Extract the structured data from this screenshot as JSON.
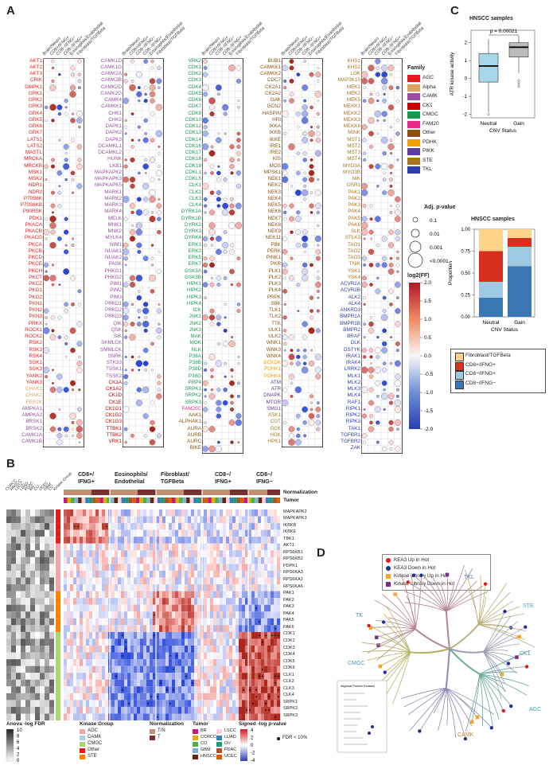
{
  "panels": {
    "a": "A",
    "b": "B",
    "c": "C",
    "d": "D"
  },
  "panelA": {
    "col_headers": [
      "Brain/Neuro",
      "CD8+/IFNG+",
      "CD8−/IFNG−",
      "CD8−/IFNG+",
      "Eosinophils/Endothelial",
      "Fibroblast/TGFBeta"
    ],
    "genes_col1": [
      "AKT1",
      "AKT2",
      "AKT3",
      "CRIK",
      "DMPK1",
      "GRK1",
      "GRK2",
      "GRK3",
      "GRK4",
      "GRK5",
      "GRK6",
      "GRK7",
      "LATS1",
      "LATS2",
      "MASTL",
      "MRCKA",
      "MRCKB",
      "MSK1",
      "MSK2",
      "NDR1",
      "NDR2",
      "P70S6K",
      "P70S6KB",
      "P90RSK",
      "PDK1",
      "PKACA",
      "PKACB",
      "PKACG",
      "PKCA",
      "PKCB",
      "PKCD",
      "PKCE",
      "PKCH",
      "PKCT",
      "PKCZ",
      "PKG1",
      "PKG2",
      "PKN1",
      "PKN2",
      "PKN3",
      "PRKX",
      "ROCK1",
      "ROCK2",
      "RSK2",
      "RSK3",
      "RSK4",
      "SGK1",
      "SGK3",
      "YANK2",
      "YANK3",
      "CHAK1",
      "CHAK2",
      "FER2K",
      "AMPKA1",
      "AMPKA2",
      "BRSK1",
      "BRSK2",
      "CAMK1A",
      "CAMK1B"
    ],
    "genes_col2": [
      "CAMK1D",
      "CAMK1G",
      "CAMK2A",
      "CAMK2B",
      "CAMK2D",
      "CAMK2G",
      "CAMK4",
      "CAMKK1",
      "CHK1",
      "CHK2",
      "DAPK1",
      "DAPK2",
      "DAPK3",
      "DCAMKL1",
      "DCAMKL2",
      "HUNK",
      "LKB1",
      "MAPKAPK2",
      "MAPKAPK3",
      "MAPKAPK5",
      "MARK1",
      "MARK2",
      "MARK3",
      "MARK4",
      "MELK",
      "MNK1",
      "MNK2",
      "MYLK4",
      "NIM1",
      "NUAK1",
      "NUAK2",
      "PASK",
      "PHKG1",
      "PHKG2",
      "PIM1",
      "PIM2",
      "PIM3",
      "PRKD1",
      "PRKD2",
      "PRKD3",
      "QIK",
      "QSK",
      "SIK",
      "SKMLCK",
      "SMMLCK",
      "SNRK",
      "STK33",
      "TSSK1",
      "TSSK2",
      "CK1A",
      "CK1A2",
      "CK1D",
      "CK1E",
      "CK1G1",
      "CK1G2",
      "CK1G3",
      "TTBK1",
      "TTBK2",
      "VRK1"
    ],
    "genes_col3": [
      "VRK2",
      "CDK1",
      "CDK2",
      "CDK3",
      "CDK4",
      "CDK5",
      "CDK6",
      "CDK7",
      "CDK9",
      "CDK10",
      "CDK12",
      "CDK13",
      "CDK14",
      "CDK16",
      "CDK17",
      "CDK18",
      "CDK19",
      "CDKL1",
      "CDKL5",
      "CLK1",
      "CLK2",
      "CLK3",
      "CLK4",
      "DYRK1A",
      "DYRK1B",
      "DYRK2",
      "DYRK3",
      "DYRK4",
      "ERK1",
      "ERK2",
      "ERK5",
      "ERK7",
      "GSK3A",
      "GSK3B",
      "HIPK1",
      "HIPK2",
      "HIPK3",
      "HIPK4",
      "ICK",
      "JNK1",
      "JNK2",
      "JNK3",
      "MAK",
      "MOK",
      "NLK",
      "P38A",
      "P38B",
      "P38D",
      "P38G",
      "PRP4",
      "SRPK1",
      "SRPK2",
      "SRPK3",
      "FAM20C",
      "AAK1",
      "ALPHAK1",
      "AURA",
      "AURB",
      "AURC",
      "BIKE"
    ],
    "genes_col4": [
      "BUB1",
      "CAMKK1",
      "CAMKK2",
      "CDC7",
      "CK2A1",
      "CK2A2",
      "GAK",
      "GCN2",
      "HASPIN",
      "HRI",
      "IKKA",
      "IKKB",
      "IKKE",
      "IRE1",
      "IRE2",
      "KIS",
      "MOS",
      "MPSK1",
      "NEK1",
      "NEK2",
      "NEK3",
      "NEK4",
      "NEK5",
      "NEK6",
      "NEK7",
      "NEK8",
      "NEK9",
      "NEK11",
      "PBK",
      "PERK",
      "PINK1",
      "PKR",
      "PLK1",
      "PLK2",
      "PLK3",
      "PLK4",
      "PRPK",
      "SBK",
      "TLK1",
      "TLK2",
      "TTK",
      "ULK1",
      "ULK2",
      "WNK1",
      "WNK3",
      "WNK4",
      "BCKDK",
      "PDHK1",
      "PDHK4",
      "ATM",
      "ATR",
      "DNAPK",
      "MTOR",
      "SMG1",
      "ASK1",
      "COT",
      "GCK",
      "HGK",
      "HPK1"
    ],
    "genes_col5": [
      "KHS1",
      "KHS2",
      "LOK",
      "MAP3K15",
      "MEK1",
      "MEK2",
      "MEK5",
      "MEKK1",
      "MEKK2",
      "MEKK3",
      "MEKK6",
      "MINK",
      "MST1",
      "MST2",
      "MST3",
      "MST4",
      "MYO3A",
      "MYO3B",
      "NIK",
      "OSR1",
      "PAK1",
      "PAK2",
      "PAK3",
      "PAK4",
      "PAK5",
      "PAK6",
      "SLK",
      "STLK3",
      "TAO1",
      "TAO2",
      "TAO3",
      "TNIK",
      "YSK1",
      "YSK4",
      "ACVR2A",
      "ACVR2B",
      "ALK2",
      "ALK4",
      "ANKRD3",
      "BMPR1A",
      "BMPR1B",
      "BMPR2",
      "BRAF",
      "DLK",
      "DSTYK",
      "IRAK1",
      "IRAK4",
      "LRRK2",
      "MLK1",
      "MLK2",
      "MLK3",
      "MLK4",
      "RAF1",
      "RIPK1",
      "RIPK2",
      "RIPK3",
      "TAK1",
      "TGFBR1",
      "TGFBR2",
      "ZAK"
    ],
    "family_title": "Family",
    "families": [
      {
        "name": "AGC",
        "color": "#e41a1c"
      },
      {
        "name": "Alpha",
        "color": "#e0a060"
      },
      {
        "name": "CAMK",
        "color": "#984ea3"
      },
      {
        "name": "CK1",
        "color": "#cc0000"
      },
      {
        "name": "CMGC",
        "color": "#1a9850"
      },
      {
        "name": "FAM20",
        "color": "#e7298a"
      },
      {
        "name": "Other",
        "color": "#8c510a"
      },
      {
        "name": "PDHK",
        "color": "#f0a000"
      },
      {
        "name": "PIKK",
        "color": "#5e3c99"
      },
      {
        "name": "STE",
        "color": "#a6761d"
      },
      {
        "name": "TKL",
        "color": "#2c3ea8"
      }
    ],
    "padj_title": "Adj. p-value",
    "padj_levels": [
      "0.1",
      "0.01",
      "0.001",
      "<0.0001"
    ],
    "fc_title": "log2(FF)",
    "fc_ticks": [
      "2.0",
      "1.5",
      "1.0",
      "0.5",
      "0.0",
      "-0.5",
      "-1.0",
      "-1.5",
      "-2.0"
    ]
  },
  "panelB": {
    "groups": [
      "CD8+/\nIFNG+",
      "Eosinophils/\nEndothelial",
      "Fibroblast/\nTGFBeta",
      "CD8−/\nIFNG+",
      "CD8−/\nIFNG−"
    ],
    "group_labels": [
      "CD8+/",
      "IFNG+",
      "Eosinophils/",
      "Endothelial",
      "Fibroblast/",
      "TGFBeta",
      "CD8−/",
      "IFNG+",
      "CD8−/",
      "IFNG−"
    ],
    "row_annot_labels": [
      "Normalization",
      "Tumor"
    ],
    "left_cols": [
      "CCRCC",
      "HNSCC",
      "LSCC",
      "LUAD",
      "PDAC",
      "BR",
      "CO",
      "UCEC",
      "GBM",
      "OV",
      "Kinase Group"
    ],
    "genes": [
      "MAPKAPK2",
      "MAPKAPK3",
      "IKBKB",
      "IKBKE",
      "TBK1",
      "AKT1",
      "RPS6KB1",
      "RPS6KB2",
      "PDPK1",
      "RPS6KA3",
      "RPS6KA2",
      "RPS6KA6",
      "PAK1",
      "PAK2",
      "PAK3",
      "PAK4",
      "PAK5",
      "PAK6",
      "CDK1",
      "CDK2",
      "CDK3",
      "CDK4",
      "CDK5",
      "CDK6",
      "CLK1",
      "CLK2",
      "CLK3",
      "CLK4",
      "SRPK1",
      "SRPK2",
      "SRPK3"
    ],
    "anova_title": "Anova -log FDR",
    "anova_ticks": [
      "10",
      "8",
      "6",
      "4",
      "2",
      "0"
    ],
    "kinase_group_title": "Kinase Group",
    "kinase_groups": [
      {
        "name": "AGC",
        "color": "#f4a3a8"
      },
      {
        "name": "CAMK",
        "color": "#a8d5e2"
      },
      {
        "name": "CMGC",
        "color": "#a6d96a"
      },
      {
        "name": "Other",
        "color": "#e41a1c"
      },
      {
        "name": "STE",
        "color": "#ff7f00"
      }
    ],
    "normalization_title": "Normalization",
    "normalizations": [
      {
        "name": "T/N",
        "color": "#c09070"
      },
      {
        "name": "T",
        "color": "#7a3030"
      }
    ],
    "tumor_title": "Tumor",
    "tumors": [
      {
        "name": "BR",
        "color": "#c51b7d"
      },
      {
        "name": "CCRCC",
        "color": "#e6ab02"
      },
      {
        "name": "CO",
        "color": "#4daf4a"
      },
      {
        "name": "GBM",
        "color": "#80b1d3"
      },
      {
        "name": "HNSCC",
        "color": "#662506"
      },
      {
        "name": "LSCC",
        "color": "#fccde5"
      },
      {
        "name": "LUAD",
        "color": "#377eb8"
      },
      {
        "name": "OV",
        "color": "#1b9e77"
      },
      {
        "name": "PDAC",
        "color": "#a65628"
      },
      {
        "name": "UCEC",
        "color": "#d95f02"
      }
    ],
    "signed_title": "Signed -log p-value",
    "signed_ticks": [
      "4",
      "2",
      "0",
      "-2",
      "-4"
    ],
    "fdr_label": "FDR < 10%"
  },
  "panelC": {
    "box_title": "HNSCC samples",
    "pvalue": "p = 0.00021",
    "ylabel": "ATR kinase activity",
    "xlabel": "CNV Status",
    "categories": [
      "Neutral",
      "Gain"
    ],
    "box_yticks": [
      "2",
      "1",
      "0",
      "-1",
      "-2"
    ],
    "bar_title": "HNSCC samples",
    "bar_ylabel": "Proportion",
    "bar_yticks": [
      "1.00",
      "0.75",
      "0.50",
      "0.25",
      "0.00"
    ],
    "bar_xlabel": "CNV Status",
    "legend": [
      {
        "name": "Fibroblast/TGFBeta",
        "color": "#fdd38a"
      },
      {
        "name": "CD8+/IFNG+",
        "color": "#d7301f"
      },
      {
        "name": "CD8−/IFNG+",
        "color": "#9ecae1"
      },
      {
        "name": "CD8−/IFNG−",
        "color": "#3a78b5"
      }
    ],
    "chart_data": [
      {
        "type": "box",
        "title": "HNSCC samples",
        "categories": [
          "Neutral",
          "Gain"
        ],
        "ylabel": "ATR kinase activity",
        "xlabel": "CNV Status",
        "ylim": [
          -2.2,
          2.7
        ],
        "series": [
          {
            "name": "Neutral",
            "q1": -0.2,
            "median": 0.7,
            "q3": 1.4,
            "min": -1.9,
            "max": 2.2
          },
          {
            "name": "Gain",
            "q1": 1.2,
            "median": 1.75,
            "q3": 2.0,
            "min": 0.3,
            "max": 2.4
          }
        ]
      },
      {
        "type": "bar",
        "title": "HNSCC samples",
        "categories": [
          "Neutral",
          "Gain"
        ],
        "ylabel": "Proportion",
        "xlabel": "CNV Status",
        "ylim": [
          0,
          1
        ],
        "series": [
          {
            "name": "CD8−/IFNG−",
            "values": [
              0.22,
              0.58
            ]
          },
          {
            "name": "CD8−/IFNG+",
            "values": [
              0.18,
              0.22
            ]
          },
          {
            "name": "CD8+/IFNG+",
            "values": [
              0.35,
              0.1
            ]
          },
          {
            "name": "Fibroblast/TGFBeta",
            "values": [
              0.25,
              0.1
            ]
          }
        ]
      }
    ]
  },
  "panelD": {
    "legend": [
      {
        "name": "KEA3 Up in Hot",
        "color": "#e41a1c"
      },
      {
        "name": "KEA3 Down in Hot",
        "color": "#1f2f9a"
      },
      {
        "name": "Kinase Library Up in Hot",
        "color": "#f5a623"
      },
      {
        "name": "Kinase Library Down in Hot",
        "color": "#7b2d8e"
      }
    ],
    "groups": [
      "TK",
      "TKL",
      "STE",
      "CK1",
      "CMGC",
      "AGC",
      "CAMK"
    ],
    "inset_title": "Atypical Protein Kinases"
  }
}
